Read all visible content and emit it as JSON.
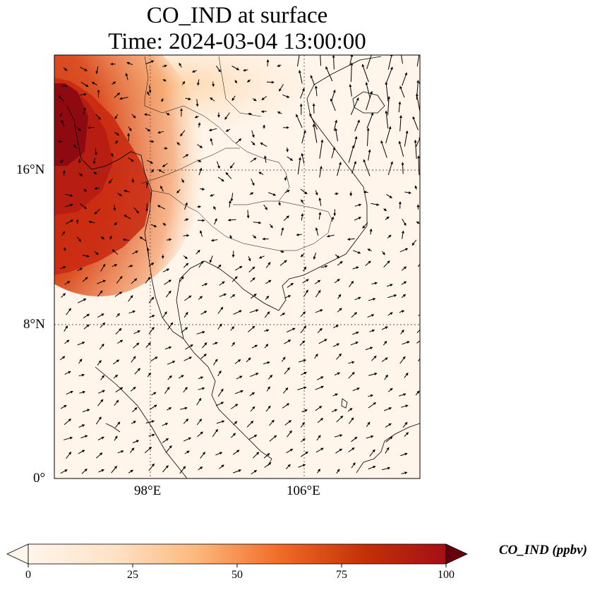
{
  "title": {
    "line1": "CO_IND at surface",
    "line2": "Time: 2024-03-04 13:00:00"
  },
  "map": {
    "variable": "CO_IND",
    "lon_range": [
      92,
      111
    ],
    "lat_range": [
      0,
      22
    ],
    "lat_ticks": [
      "16°N",
      "8°N",
      "0°"
    ],
    "lon_ticks": [
      "98°E",
      "106°E"
    ],
    "gridlines": true,
    "colormap": [
      "#fff5eb",
      "#fdd0a2",
      "#fd8d3c",
      "#d94801",
      "#a50f15",
      "#67000d"
    ],
    "overlay": "wind vectors"
  },
  "colorbar": {
    "label": "CO_IND (ppbv)",
    "ticks": [
      "0",
      "25",
      "50",
      "75",
      "100"
    ],
    "range": [
      0,
      100
    ],
    "extend": "both"
  }
}
